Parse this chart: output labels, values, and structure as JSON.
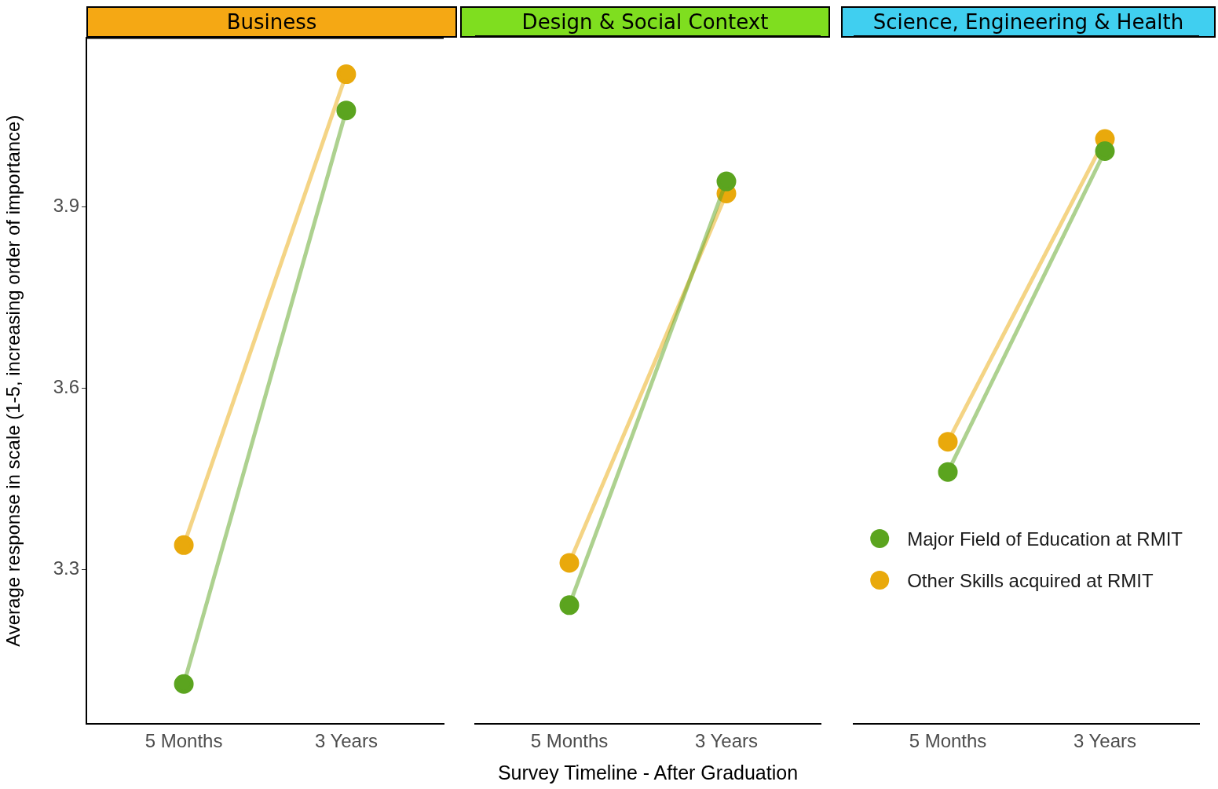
{
  "chart_data": [
    {
      "type": "line",
      "title": "Business",
      "ylabel": "Average response in scale (1-5, increasing order of importance)",
      "categories": [
        "5 Months",
        "3 Years"
      ],
      "ylim": [
        3.044,
        4.18
      ],
      "yticks": [
        3.3,
        3.6,
        3.9
      ],
      "grid": false,
      "legend": false,
      "marker": "circle",
      "line_style": "solid",
      "series": [
        {
          "color": "#5ba41f",
          "values": [
            3.11,
            4.06
          ]
        },
        {
          "color": "#e9a90c",
          "values": [
            3.34,
            4.12
          ]
        }
      ]
    },
    {
      "type": "line",
      "title": "Design & Social Context",
      "xlabel": "Survey Timeline - After Graduation",
      "categories": [
        "5 Months",
        "3 Years"
      ],
      "ylim": [
        3.044,
        4.18
      ],
      "yticks": [
        3.3,
        3.6,
        3.9
      ],
      "tick_labels": "x",
      "grid": false,
      "legend": false,
      "marker": "circle",
      "line_style": "solid",
      "series": [
        {
          "color": "#5ba41f",
          "values": [
            3.24,
            3.94
          ]
        },
        {
          "color": "#e9a90c",
          "values": [
            3.31,
            3.92
          ]
        }
      ]
    },
    {
      "type": "line",
      "title": "Science, Engineering & Health",
      "categories": [
        "5 Months",
        "3 Years"
      ],
      "ylim": [
        3.044,
        4.18
      ],
      "yticks": [
        3.3,
        3.6,
        3.9
      ],
      "tick_labels": "x",
      "grid": false,
      "legend": "bottom right",
      "marker": "circle",
      "line_style": "solid",
      "series": [
        {
          "name": "Major Field of Education at RMIT",
          "color": "#5ba41f",
          "values": [
            3.46,
            3.99
          ]
        },
        {
          "name": "Other Skills acquired at RMIT",
          "color": "#e9a90c",
          "values": [
            3.51,
            4.01
          ]
        }
      ]
    }
  ]
}
